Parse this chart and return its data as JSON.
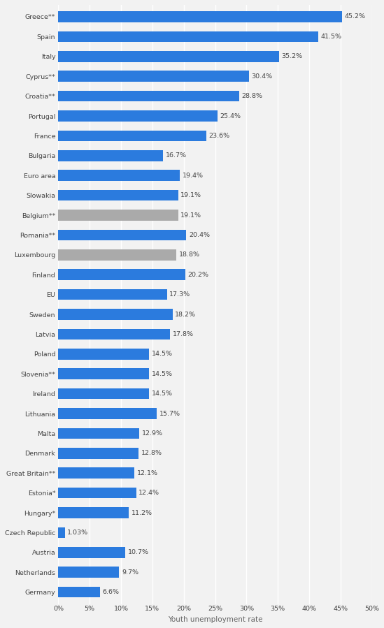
{
  "categories": [
    "Greece**",
    "Spain",
    "Italy",
    "Cyprus**",
    "Croatia**",
    "Portugal",
    "France",
    "Bulgaria",
    "Euro area",
    "Slowakia",
    "Belgium**",
    "Romania**",
    "Luxembourg",
    "Finland",
    "EU",
    "Sweden",
    "Latvia",
    "Poland",
    "Slovenia**",
    "Ireland",
    "Lithuania",
    "Malta",
    "Denmark",
    "Great Britain**",
    "Estonia*",
    "Hungary*",
    "Czech Republic",
    "Austria",
    "Netherlands",
    "Germany"
  ],
  "values": [
    45.2,
    41.5,
    35.2,
    30.4,
    28.8,
    25.4,
    23.6,
    16.7,
    19.4,
    19.1,
    19.1,
    20.4,
    18.8,
    20.2,
    17.3,
    18.2,
    17.8,
    14.5,
    14.5,
    14.5,
    15.7,
    12.9,
    12.8,
    12.1,
    12.4,
    11.2,
    1.03,
    10.7,
    9.7,
    6.6
  ],
  "labels": [
    "45.2%",
    "41.5%",
    "35.2%",
    "30.4%",
    "28.8%",
    "25.4%",
    "23.6%",
    "16.7%",
    "19.4%",
    "19.1%",
    "19.1%",
    "20.4%",
    "18.8%",
    "20.2%",
    "17.3%",
    "18.2%",
    "17.8%",
    "14.5%",
    "14.5%",
    "14.5%",
    "15.7%",
    "12.9%",
    "12.8%",
    "12.1%",
    "12.4%",
    "11.2%",
    "1.03%",
    "10.7%",
    "9.7%",
    "6.6%"
  ],
  "bar_colors": [
    "#2b7bde",
    "#2b7bde",
    "#2b7bde",
    "#2b7bde",
    "#2b7bde",
    "#2b7bde",
    "#2b7bde",
    "#2b7bde",
    "#2b7bde",
    "#2b7bde",
    "#aaaaaa",
    "#2b7bde",
    "#aaaaaa",
    "#2b7bde",
    "#2b7bde",
    "#2b7bde",
    "#2b7bde",
    "#2b7bde",
    "#2b7bde",
    "#2b7bde",
    "#2b7bde",
    "#2b7bde",
    "#2b7bde",
    "#2b7bde",
    "#2b7bde",
    "#2b7bde",
    "#2b7bde",
    "#2b7bde",
    "#2b7bde",
    "#2b7bde"
  ],
  "xlabel": "Youth unemployment rate",
  "xlim": [
    0,
    50
  ],
  "xticks": [
    0,
    5,
    10,
    15,
    20,
    25,
    30,
    35,
    40,
    45,
    50
  ],
  "xticklabels": [
    "0%",
    "5%",
    "10%",
    "15%",
    "20%",
    "25%",
    "30%",
    "35%",
    "40%",
    "45%",
    "50%"
  ],
  "background_color": "#f2f2f2",
  "bar_height": 0.55,
  "label_fontsize": 6.8,
  "tick_fontsize": 6.8,
  "xlabel_fontsize": 7.5
}
